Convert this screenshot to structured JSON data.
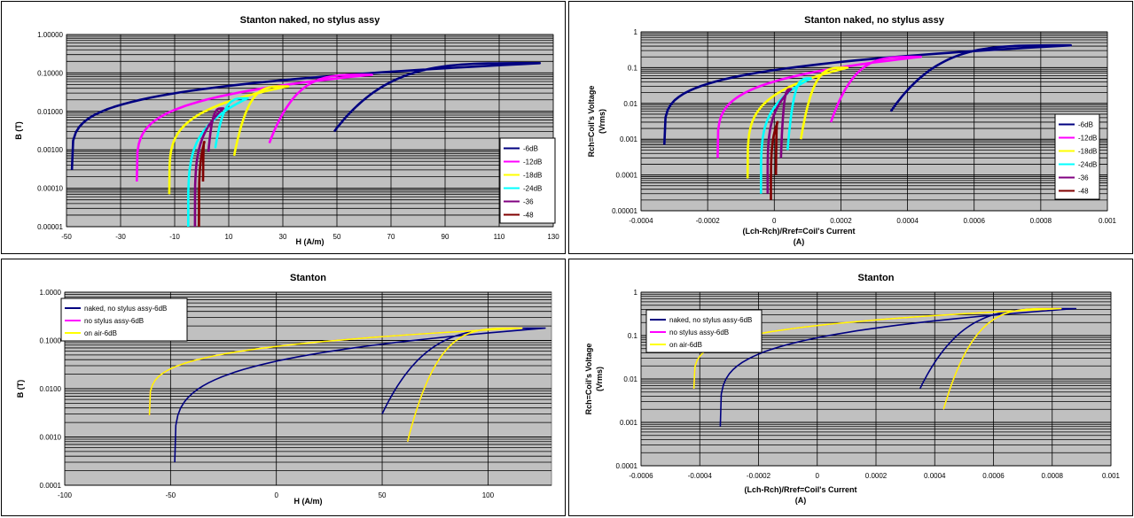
{
  "chart_data": [
    {
      "type": "line",
      "title": "Stanton naked, no stylus assy",
      "xlabel": "H (A/m)",
      "ylabel": "B (T)",
      "xscale": "linear",
      "yscale": "log",
      "xlim": [
        -50,
        130
      ],
      "ylim": [
        1e-05,
        1
      ],
      "x_ticks": [
        -50,
        -30,
        -10,
        10,
        30,
        50,
        70,
        90,
        110,
        130
      ],
      "x_tick_labels": [
        "-50",
        "-30",
        "-10",
        "10",
        "30",
        "50",
        "70",
        "90",
        "110",
        "130"
      ],
      "y_ticks": [
        1,
        0.1,
        0.01,
        0.001,
        0.0001,
        1e-05
      ],
      "y_tick_labels": [
        "1.00000",
        "0.10000",
        "0.01000",
        "0.00100",
        "0.00010",
        "0.00001"
      ],
      "grid": true,
      "legend_position": "right",
      "series": [
        {
          "name": "-6dB",
          "color": "#000080",
          "x_min": -48,
          "x_tip": 125,
          "x_join": 49,
          "y_base": 0.0003,
          "y_tip": 0.18,
          "y_join": 0.003
        },
        {
          "name": "-12dB",
          "color": "#FF00FF",
          "x_min": -24,
          "x_tip": 63,
          "x_join": 25,
          "y_base": 0.00015,
          "y_tip": 0.09,
          "y_join": 0.0015
        },
        {
          "name": "-18dB",
          "color": "#FFFF00",
          "x_min": -12,
          "x_tip": 32,
          "x_join": 12,
          "y_base": 7e-05,
          "y_tip": 0.045,
          "y_join": 0.0007
        },
        {
          "name": "-24dB",
          "color": "#00FFFF",
          "x_min": -5,
          "x_tip": 17,
          "x_join": 5,
          "y_base": 1e-05,
          "y_tip": 0.022,
          "y_join": 0.0011
        },
        {
          "name": "-36",
          "color": "#800080",
          "x_min": -2.5,
          "x_tip": 8,
          "x_join": 2.5,
          "y_base": 1e-05,
          "y_tip": 0.012,
          "y_join": 0.0009
        },
        {
          "name": "-48",
          "color": "#800000",
          "x_min": -1,
          "x_tip": 1,
          "x_join": 0.5,
          "y_base": 1e-05,
          "y_tip": 0.0016,
          "y_join": 0.00015
        }
      ]
    },
    {
      "type": "line",
      "title": "Stanton naked, no stylus assy",
      "xlabel": "(Lch-Rch)/Rref=Coil's Current\n(A)",
      "ylabel": "Rch=Coil's Voltage\n(Vrms)",
      "xscale": "linear",
      "yscale": "log",
      "xlim": [
        -0.0004,
        0.001
      ],
      "ylim": [
        1e-05,
        1
      ],
      "x_ticks": [
        -0.0004,
        -0.0002,
        0,
        0.0002,
        0.0004,
        0.0006,
        0.0008,
        0.001
      ],
      "x_tick_labels": [
        "-0.0004",
        "-0.0002",
        "0",
        "0.0002",
        "0.0004",
        "0.0006",
        "0.0008",
        "0.001"
      ],
      "y_ticks": [
        1,
        0.1,
        0.01,
        0.001,
        0.0001,
        1e-05
      ],
      "y_tick_labels": [
        "1",
        "0.1",
        "0.01",
        "0.001",
        "0.0001",
        "0.00001"
      ],
      "grid": true,
      "legend_position": "right",
      "series": [
        {
          "name": "-6dB",
          "color": "#000080",
          "x_min": -0.00033,
          "x_tip": 0.00089,
          "x_join": 0.00035,
          "y_base": 0.0007,
          "y_tip": 0.42,
          "y_join": 0.006
        },
        {
          "name": "-12dB",
          "color": "#FF00FF",
          "x_min": -0.00017,
          "x_tip": 0.00044,
          "x_join": 0.00017,
          "y_base": 0.0003,
          "y_tip": 0.2,
          "y_join": 0.003
        },
        {
          "name": "-18dB",
          "color": "#FFFF00",
          "x_min": -8e-05,
          "x_tip": 0.00022,
          "x_join": 8e-05,
          "y_base": 8e-05,
          "y_tip": 0.1,
          "y_join": 0.001
        },
        {
          "name": "-24dB",
          "color": "#00FFFF",
          "x_min": -4e-05,
          "x_tip": 0.00011,
          "x_join": 4e-05,
          "y_base": 3e-05,
          "y_tip": 0.05,
          "y_join": 0.0005
        },
        {
          "name": "-36",
          "color": "#800080",
          "x_min": -2e-05,
          "x_tip": 5e-05,
          "x_join": 2e-05,
          "y_base": 3e-05,
          "y_tip": 0.025,
          "y_join": 0.0003
        },
        {
          "name": "-48",
          "color": "#800000",
          "x_min": -1e-05,
          "x_tip": 1e-05,
          "x_join": 5e-06,
          "y_base": 2e-05,
          "y_tip": 0.003,
          "y_join": 0.0001
        }
      ]
    },
    {
      "type": "line",
      "title": "Stanton",
      "xlabel": "H (A/m)",
      "ylabel": "B (T)",
      "xscale": "linear",
      "yscale": "log",
      "xlim": [
        -100,
        130
      ],
      "ylim": [
        0.0001,
        1
      ],
      "x_ticks": [
        -100,
        -50,
        0,
        50,
        100
      ],
      "x_tick_labels": [
        "-100",
        "-50",
        "0",
        "50",
        "100"
      ],
      "y_ticks": [
        1,
        0.1,
        0.01,
        0.001,
        0.0001
      ],
      "y_tick_labels": [
        "1.0000",
        "0.1000",
        "0.0100",
        "0.0010",
        "0.0001"
      ],
      "grid": true,
      "legend_position": "top-left",
      "series": [
        {
          "name": "naked, no stylus assy-6dB",
          "color": "#000080",
          "x_min": -48,
          "x_tip": 127,
          "x_join": 50,
          "y_base": 0.0003,
          "y_tip": 0.18,
          "y_join": 0.003
        },
        {
          "name": "no stylus assy-6dB",
          "color": "#FF00FF",
          "x_min": -60,
          "x_tip": 116,
          "x_join": 62,
          "y_base": 0.0028,
          "y_tip": 0.18,
          "y_join": 0.0008
        },
        {
          "name": "on air-6dB",
          "color": "#FFFF00",
          "x_min": -60,
          "x_tip": 116,
          "x_join": 62,
          "y_base": 0.0028,
          "y_tip": 0.18,
          "y_join": 0.0008
        }
      ]
    },
    {
      "type": "line",
      "title": "Stanton",
      "xlabel": "(Lch-Rch)/Rref=Coil's Current\n(A)",
      "ylabel": "Rch=Coil's Voltage\n(Vrms)",
      "xscale": "linear",
      "yscale": "log",
      "xlim": [
        -0.0006,
        0.001
      ],
      "ylim": [
        0.0001,
        1
      ],
      "x_ticks": [
        -0.0006,
        -0.0004,
        -0.0002,
        0,
        0.0002,
        0.0004,
        0.0006,
        0.0008,
        0.001
      ],
      "x_tick_labels": [
        "-0.0006",
        "-0.0004",
        "-0.0002",
        "0",
        "0.0002",
        "0.0004",
        "0.0006",
        "0.0008",
        "0.001"
      ],
      "y_ticks": [
        1,
        0.1,
        0.01,
        0.001,
        0.0001
      ],
      "y_tick_labels": [
        "1",
        "0.1",
        "0.01",
        "0.001",
        "0.0001"
      ],
      "grid": true,
      "legend_position": "top-left",
      "series": [
        {
          "name": "naked, no stylus assy-6dB",
          "color": "#000080",
          "x_min": -0.00033,
          "x_tip": 0.00088,
          "x_join": 0.00035,
          "y_base": 0.0008,
          "y_tip": 0.42,
          "y_join": 0.006
        },
        {
          "name": "no stylus assy-6dB",
          "color": "#FF00FF",
          "x_min": -0.00042,
          "x_tip": 0.00083,
          "x_join": 0.00043,
          "y_base": 0.006,
          "y_tip": 0.42,
          "y_join": 0.002
        },
        {
          "name": "on air-6dB",
          "color": "#FFFF00",
          "x_min": -0.00042,
          "x_tip": 0.00083,
          "x_join": 0.00043,
          "y_base": 0.006,
          "y_tip": 0.42,
          "y_join": 0.002
        }
      ]
    }
  ]
}
